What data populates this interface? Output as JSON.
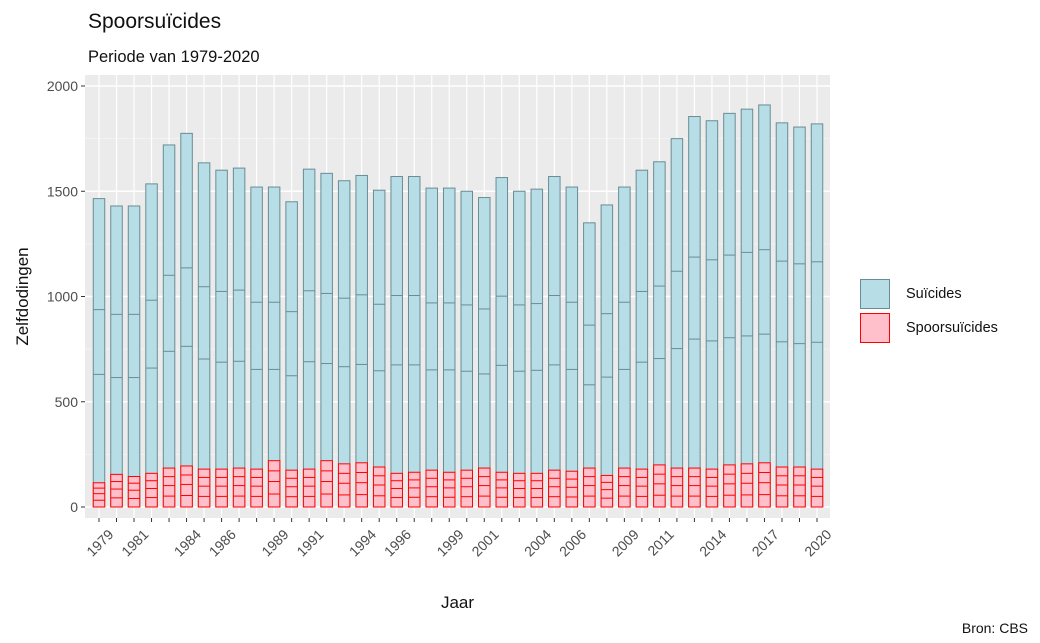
{
  "title": "Spoorsuïcides",
  "subtitle": "Periode van 1979-2020",
  "caption": "Bron: CBS",
  "chart_data": {
    "type": "bar",
    "stacked": true,
    "xlabel": "Jaar",
    "ylabel": "Zelfdodingen",
    "ylim": [
      0,
      2000
    ],
    "yticks": [
      0,
      500,
      1000,
      1500,
      2000
    ],
    "x": [
      1979,
      1980,
      1981,
      1982,
      1983,
      1984,
      1985,
      1986,
      1987,
      1988,
      1989,
      1990,
      1991,
      1992,
      1993,
      1994,
      1995,
      1996,
      1997,
      1998,
      1999,
      2000,
      2001,
      2002,
      2003,
      2004,
      2005,
      2006,
      2007,
      2008,
      2009,
      2010,
      2011,
      2012,
      2013,
      2014,
      2015,
      2016,
      2017,
      2018,
      2019,
      2020
    ],
    "xtick_labels": [
      "1979",
      "1981",
      "1984",
      "1986",
      "1989",
      "1991",
      "1994",
      "1996",
      "1999",
      "2001",
      "2004",
      "2006",
      "2009",
      "2011",
      "2014",
      "2017",
      "2020"
    ],
    "grid": true,
    "legend_position": "right",
    "series": [
      {
        "name": "Suïcides",
        "fill": "#b7dde6",
        "stroke": "#6a8c94",
        "values": [
          1465,
          1430,
          1430,
          1535,
          1720,
          1775,
          1635,
          1600,
          1610,
          1520,
          1520,
          1450,
          1605,
          1585,
          1550,
          1575,
          1505,
          1570,
          1570,
          1515,
          1515,
          1500,
          1470,
          1565,
          1500,
          1510,
          1570,
          1520,
          1350,
          1435,
          1520,
          1600,
          1640,
          1750,
          1855,
          1835,
          1870,
          1890,
          1910,
          1825,
          1805,
          1820
        ]
      },
      {
        "name": "Spoorsuïcides",
        "fill": "#ffc0cb",
        "stroke": "#ff0000",
        "values": [
          115,
          155,
          145,
          160,
          185,
          195,
          180,
          180,
          185,
          180,
          220,
          175,
          180,
          220,
          205,
          210,
          190,
          160,
          165,
          175,
          165,
          175,
          185,
          165,
          160,
          160,
          175,
          170,
          185,
          150,
          185,
          180,
          200,
          185,
          185,
          180,
          200,
          205,
          210,
          190,
          190,
          180
        ]
      }
    ]
  },
  "legend": {
    "items": [
      {
        "label": "Suïcides",
        "fill": "#b7dde6",
        "stroke": "#6a8c94"
      },
      {
        "label": "Spoorsuïcides",
        "fill": "#ffc0cb",
        "stroke": "#ff0000"
      }
    ]
  }
}
